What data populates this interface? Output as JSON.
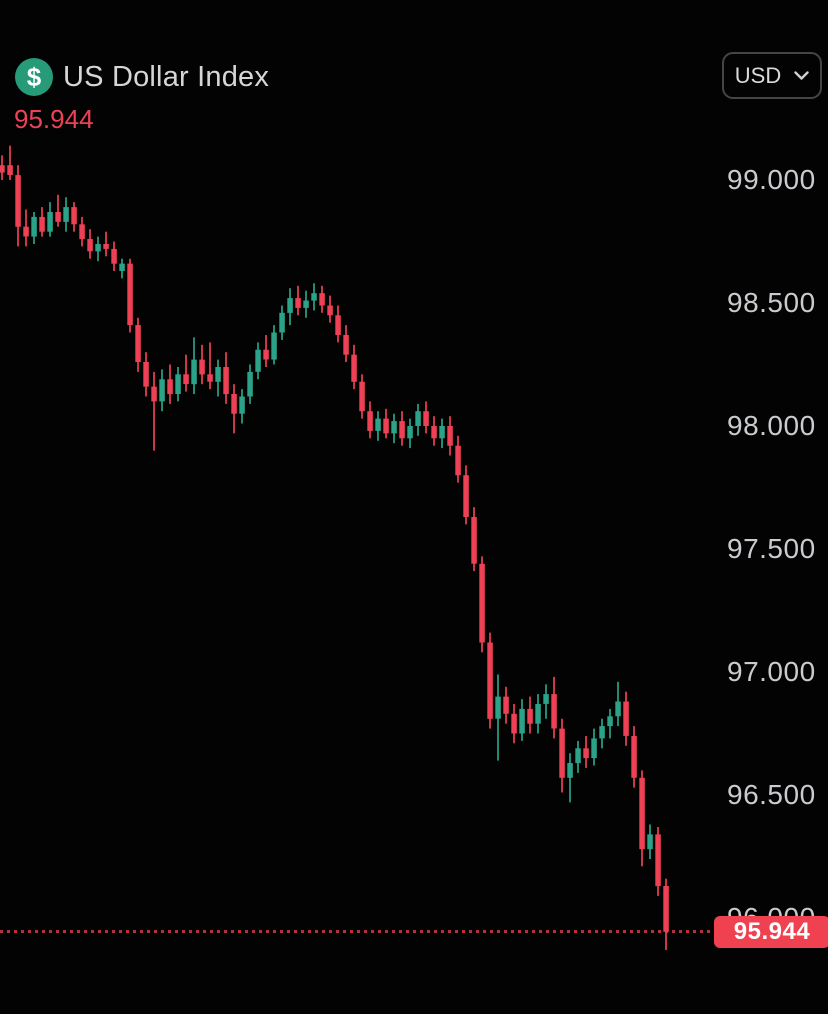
{
  "header": {
    "icon_glyph": "$",
    "title": "US Dollar Index",
    "price": "95.944",
    "currency_selector": {
      "label": "USD",
      "icon": "chevron-down-icon"
    }
  },
  "colors": {
    "background": "#030303",
    "bullish": "#2aa389",
    "bearish": "#ef4155",
    "axis_text": "#c9cbce",
    "title_text": "#d4d6d8",
    "header_price_text": "#ef4155",
    "price_label_bg": "#ef4150",
    "price_label_text": "#ffffff",
    "icon_bg": "#279b77",
    "button_border": "#454549",
    "button_text": "#dadada"
  },
  "chart_data": {
    "type": "candlestick",
    "title": "US Dollar Index",
    "last_price": 95.944,
    "y_axis": {
      "side": "right",
      "ticks": [
        "99.000",
        "98.500",
        "98.000",
        "97.500",
        "97.000",
        "96.500",
        "96.000"
      ],
      "tick_step": 0.5,
      "ylim": [
        95.8,
        99.25
      ],
      "grid": false
    },
    "price_line": {
      "value": 95.944,
      "label": "95.944",
      "style": "dotted"
    },
    "candles": [
      [
        99.06,
        99.1,
        99.0,
        99.03
      ],
      [
        99.06,
        99.14,
        99.0,
        99.02
      ],
      [
        99.02,
        99.06,
        98.73,
        98.81
      ],
      [
        98.81,
        98.88,
        98.73,
        98.77
      ],
      [
        98.77,
        98.87,
        98.74,
        98.85
      ],
      [
        98.85,
        98.89,
        98.77,
        98.79
      ],
      [
        98.79,
        98.91,
        98.77,
        98.87
      ],
      [
        98.87,
        98.94,
        98.81,
        98.83
      ],
      [
        98.83,
        98.93,
        98.79,
        98.89
      ],
      [
        98.89,
        98.91,
        98.79,
        98.82
      ],
      [
        98.82,
        98.85,
        98.73,
        98.76
      ],
      [
        98.76,
        98.8,
        98.68,
        98.71
      ],
      [
        98.71,
        98.77,
        98.67,
        98.74
      ],
      [
        98.74,
        98.79,
        98.69,
        98.72
      ],
      [
        98.72,
        98.75,
        98.63,
        98.66
      ],
      [
        98.63,
        98.68,
        98.6,
        98.66
      ],
      [
        98.66,
        98.68,
        98.38,
        98.41
      ],
      [
        98.41,
        98.44,
        98.22,
        98.26
      ],
      [
        98.26,
        98.3,
        98.12,
        98.16
      ],
      [
        98.16,
        98.22,
        97.9,
        98.1
      ],
      [
        98.1,
        98.23,
        98.06,
        98.19
      ],
      [
        98.19,
        98.25,
        98.09,
        98.13
      ],
      [
        98.13,
        98.24,
        98.1,
        98.21
      ],
      [
        98.21,
        98.29,
        98.14,
        98.17
      ],
      [
        98.17,
        98.36,
        98.13,
        98.27
      ],
      [
        98.27,
        98.33,
        98.17,
        98.21
      ],
      [
        98.21,
        98.34,
        98.15,
        98.18
      ],
      [
        98.18,
        98.27,
        98.12,
        98.24
      ],
      [
        98.24,
        98.3,
        98.09,
        98.13
      ],
      [
        98.13,
        98.17,
        97.97,
        98.05
      ],
      [
        98.05,
        98.15,
        98.01,
        98.12
      ],
      [
        98.12,
        98.25,
        98.09,
        98.22
      ],
      [
        98.22,
        98.34,
        98.19,
        98.31
      ],
      [
        98.31,
        98.37,
        98.24,
        98.27
      ],
      [
        98.27,
        98.41,
        98.25,
        98.38
      ],
      [
        98.38,
        98.49,
        98.35,
        98.46
      ],
      [
        98.46,
        98.56,
        98.41,
        98.52
      ],
      [
        98.52,
        98.57,
        98.45,
        98.48
      ],
      [
        98.48,
        98.55,
        98.44,
        98.51
      ],
      [
        98.51,
        98.58,
        98.47,
        98.54
      ],
      [
        98.54,
        98.57,
        98.46,
        98.49
      ],
      [
        98.49,
        98.53,
        98.42,
        98.45
      ],
      [
        98.45,
        98.49,
        98.34,
        98.37
      ],
      [
        98.37,
        98.41,
        98.26,
        98.29
      ],
      [
        98.29,
        98.33,
        98.15,
        98.18
      ],
      [
        98.18,
        98.21,
        98.03,
        98.06
      ],
      [
        98.06,
        98.1,
        97.95,
        97.98
      ],
      [
        97.98,
        98.06,
        97.94,
        98.03
      ],
      [
        98.03,
        98.07,
        97.95,
        97.97
      ],
      [
        97.97,
        98.05,
        97.93,
        98.02
      ],
      [
        98.02,
        98.06,
        97.92,
        97.95
      ],
      [
        97.95,
        98.03,
        97.91,
        98.0
      ],
      [
        98.0,
        98.09,
        97.96,
        98.06
      ],
      [
        98.06,
        98.1,
        97.97,
        98.0
      ],
      [
        98.0,
        98.04,
        97.92,
        97.95
      ],
      [
        97.95,
        98.03,
        97.91,
        98.0
      ],
      [
        98.0,
        98.04,
        97.88,
        97.92
      ],
      [
        97.92,
        97.96,
        97.77,
        97.8
      ],
      [
        97.8,
        97.84,
        97.6,
        97.63
      ],
      [
        97.63,
        97.67,
        97.41,
        97.44
      ],
      [
        97.44,
        97.47,
        97.08,
        97.12
      ],
      [
        97.12,
        97.16,
        96.77,
        96.81
      ],
      [
        96.81,
        96.99,
        96.64,
        96.9
      ],
      [
        96.9,
        96.94,
        96.79,
        96.83
      ],
      [
        96.83,
        96.87,
        96.71,
        96.75
      ],
      [
        96.75,
        96.89,
        96.72,
        96.85
      ],
      [
        96.85,
        96.9,
        96.75,
        96.79
      ],
      [
        96.79,
        96.91,
        96.75,
        96.87
      ],
      [
        96.87,
        96.95,
        96.81,
        96.91
      ],
      [
        96.91,
        96.98,
        96.73,
        96.77
      ],
      [
        96.77,
        96.81,
        96.51,
        96.57
      ],
      [
        96.57,
        96.67,
        96.47,
        96.63
      ],
      [
        96.63,
        96.72,
        96.59,
        96.69
      ],
      [
        96.69,
        96.74,
        96.61,
        96.65
      ],
      [
        96.65,
        96.77,
        96.62,
        96.73
      ],
      [
        96.73,
        96.81,
        96.69,
        96.78
      ],
      [
        96.78,
        96.85,
        96.73,
        96.82
      ],
      [
        96.82,
        96.96,
        96.78,
        96.88
      ],
      [
        96.88,
        96.92,
        96.7,
        96.74
      ],
      [
        96.74,
        96.78,
        96.53,
        96.57
      ],
      [
        96.57,
        96.6,
        96.21,
        96.28
      ],
      [
        96.28,
        96.38,
        96.24,
        96.34
      ],
      [
        96.34,
        96.37,
        96.09,
        96.13
      ],
      [
        96.13,
        96.16,
        95.87,
        95.944
      ]
    ]
  }
}
